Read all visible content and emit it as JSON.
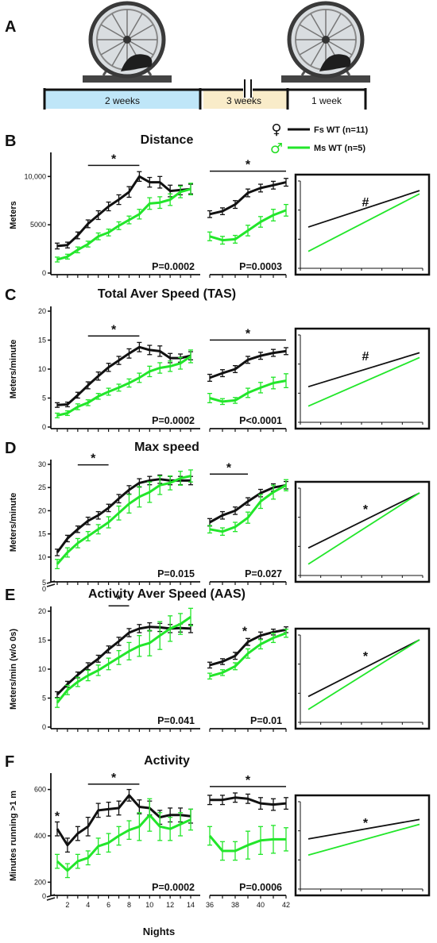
{
  "colors": {
    "fs": "#111111",
    "ms": "#22e62a",
    "timeline_water": "#bfe6f8",
    "timeline_sand": "#f9ecc9"
  },
  "icons": [
    "running-wheel-icon",
    "running-wheel-icon"
  ],
  "panel_a": {
    "label": "A",
    "segments": [
      "2 weeks",
      "3 weeks",
      "1 week"
    ]
  },
  "legend": {
    "fs_symbol": "♀",
    "ms_symbol": "♂",
    "fs_label": "Fs WT (n=11)",
    "ms_label": "Ms WT (n=5)"
  },
  "x_axis": {
    "label": "Nights",
    "left_ticks": [
      "2",
      "4",
      "6",
      "8",
      "10",
      "12",
      "14"
    ],
    "right_ticks": [
      "36",
      "38",
      "40",
      "42"
    ]
  },
  "chart_data": [
    {
      "id": "B",
      "label": "B",
      "type": "line",
      "title": "Distance",
      "ylabel": "Meters",
      "ylim": [
        0,
        12000
      ],
      "yticks": [
        0,
        5000,
        10000
      ],
      "ytick_labels": [
        "0",
        "5000",
        "10,000"
      ],
      "axis_break": false,
      "x_left": [
        1,
        2,
        3,
        4,
        5,
        6,
        7,
        8,
        9,
        10,
        11,
        12,
        13,
        14
      ],
      "x_right": [
        36,
        37,
        38,
        39,
        40,
        41,
        42
      ],
      "series": [
        {
          "name": "Fs WT (n=11)",
          "color_key": "fs",
          "left": [
            2800,
            2900,
            3900,
            5100,
            6000,
            6900,
            7600,
            8400,
            10000,
            9400,
            9400,
            8500,
            8600,
            8700
          ],
          "left_err": [
            300,
            300,
            350,
            400,
            450,
            450,
            500,
            550,
            500,
            500,
            600,
            600,
            500,
            500
          ],
          "right": [
            6100,
            6400,
            7100,
            8300,
            8800,
            9100,
            9400
          ],
          "right_err": [
            350,
            350,
            400,
            400,
            400,
            400,
            400
          ]
        },
        {
          "name": "Ms WT (n=5)",
          "color_key": "ms",
          "left": [
            1400,
            1700,
            2400,
            3000,
            3800,
            4200,
            4900,
            5500,
            6100,
            7200,
            7300,
            7600,
            8400,
            8700
          ],
          "left_err": [
            250,
            250,
            300,
            300,
            350,
            350,
            400,
            400,
            500,
            600,
            600,
            600,
            600,
            600
          ],
          "right": [
            3800,
            3400,
            3500,
            4400,
            5300,
            6000,
            6500
          ],
          "right_err": [
            450,
            400,
            400,
            550,
            550,
            600,
            600
          ]
        }
      ],
      "sig_left": {
        "x1": 4,
        "x2": 9,
        "label": "*"
      },
      "sig_right": {
        "x1": 36,
        "x2": 42,
        "label": "*"
      },
      "p_left": "P=0.0002",
      "p_right": "P=0.0003",
      "inset": {
        "label": "#",
        "fs": [
          0.47,
          0.92
        ],
        "ms": [
          0.17,
          0.88
        ]
      }
    },
    {
      "id": "C",
      "label": "C",
      "type": "line",
      "title": "Total Aver Speed (TAS)",
      "ylabel": "Meters/minute",
      "ylim": [
        0,
        20
      ],
      "yticks": [
        0,
        5,
        10,
        15,
        20
      ],
      "ytick_labels": [
        "0",
        "5",
        "10",
        "15",
        "20"
      ],
      "axis_break": false,
      "x_left": [
        1,
        2,
        3,
        4,
        5,
        6,
        7,
        8,
        9,
        10,
        11,
        12,
        13,
        14
      ],
      "x_right": [
        36,
        37,
        38,
        39,
        40,
        41,
        42
      ],
      "series": [
        {
          "name": "Fs WT (n=11)",
          "color_key": "fs",
          "left": [
            3.8,
            3.9,
            5.5,
            7.2,
            8.8,
            10.3,
            11.5,
            12.7,
            13.8,
            13.3,
            13.1,
            11.9,
            11.9,
            12.3
          ],
          "left_err": [
            0.4,
            0.4,
            0.5,
            0.6,
            0.7,
            0.7,
            0.7,
            0.8,
            0.8,
            0.8,
            0.9,
            0.8,
            0.7,
            0.7
          ],
          "right": [
            8.5,
            9.3,
            10.0,
            11.6,
            12.3,
            12.8,
            13.1
          ],
          "right_err": [
            0.6,
            0.6,
            0.6,
            0.6,
            0.6,
            0.6,
            0.6
          ]
        },
        {
          "name": "Ms WT (n=5)",
          "color_key": "ms",
          "left": [
            2.0,
            2.4,
            3.5,
            4.2,
            5.3,
            6.1,
            6.8,
            7.6,
            8.5,
            9.6,
            10.2,
            10.5,
            11.0,
            12.2
          ],
          "left_err": [
            0.4,
            0.4,
            0.5,
            0.5,
            0.5,
            0.6,
            0.6,
            0.7,
            0.8,
            0.9,
            0.9,
            0.9,
            1.0,
            1.1
          ],
          "right": [
            5.0,
            4.4,
            4.6,
            5.9,
            6.8,
            7.6,
            8.0
          ],
          "right_err": [
            0.8,
            0.5,
            0.5,
            0.8,
            0.9,
            1.0,
            1.2
          ]
        }
      ],
      "sig_left": {
        "x1": 4,
        "x2": 9,
        "label": "*"
      },
      "sig_right": {
        "x1": 36,
        "x2": 42,
        "label": "*"
      },
      "p_left": "P=0.0002",
      "p_right": "P<0.0001",
      "inset": {
        "label": "#",
        "fs": [
          0.4,
          0.82
        ],
        "ms": [
          0.16,
          0.76
        ]
      }
    },
    {
      "id": "D",
      "label": "D",
      "type": "line",
      "title": "Max speed",
      "ylabel": "Meters/minute",
      "ylim": [
        5,
        30
      ],
      "yticks": [
        10,
        15,
        20,
        25,
        30
      ],
      "ytick_labels": [
        "10",
        "15",
        "20",
        "25",
        "30"
      ],
      "axis_break": true,
      "break_labels": [
        "5",
        "0"
      ],
      "x_left": [
        1,
        2,
        3,
        4,
        5,
        6,
        7,
        8,
        9,
        10,
        11,
        12,
        13,
        14
      ],
      "x_right": [
        36,
        37,
        38,
        39,
        40,
        41,
        42
      ],
      "series": [
        {
          "name": "Fs WT (n=11)",
          "color_key": "fs",
          "left": [
            11,
            14,
            16,
            17.8,
            19,
            20.6,
            22.6,
            24.5,
            26,
            26.5,
            26.8,
            26.5,
            26.5,
            26.5
          ],
          "left_err": [
            0.7,
            0.7,
            0.7,
            0.8,
            0.8,
            0.8,
            0.9,
            0.9,
            0.9,
            0.9,
            0.9,
            0.9,
            0.9,
            0.9
          ],
          "right": [
            17.5,
            19,
            20,
            22,
            23.8,
            25,
            25.5
          ],
          "right_err": [
            0.8,
            0.8,
            0.8,
            0.8,
            0.8,
            0.8,
            0.8
          ]
        },
        {
          "name": "Ms WT (n=5)",
          "color_key": "ms",
          "left": [
            8.5,
            11,
            13,
            14.5,
            16,
            17.5,
            19.5,
            21.5,
            23,
            24,
            25.5,
            26,
            27,
            27.5
          ],
          "left_err": [
            1.0,
            1.0,
            1.0,
            1.0,
            1.0,
            1.2,
            1.5,
            2.0,
            2.2,
            2.2,
            2.0,
            1.5,
            1.5,
            1.3
          ],
          "right": [
            16,
            15.5,
            16.5,
            18.5,
            22,
            24,
            25.5
          ],
          "right_err": [
            0.8,
            0.8,
            1.0,
            1.2,
            1.5,
            1.5,
            1.2
          ]
        }
      ],
      "sig_left": {
        "x1": 3,
        "x2": 6,
        "label": "*"
      },
      "sig_right": {
        "x1": 36,
        "x2": 39,
        "label": "*"
      },
      "p_left": "P=0.015",
      "p_right": "P=0.027",
      "inset": {
        "label": "*",
        "fs": [
          0.3,
          0.98
        ],
        "ms": [
          0.1,
          0.98
        ]
      }
    },
    {
      "id": "E",
      "label": "E",
      "type": "line",
      "title": "Activity Aver Speed (AAS)",
      "ylabel": "Meters/min (w/o 0s)",
      "ylim": [
        0,
        20
      ],
      "yticks": [
        0,
        5,
        10,
        15,
        20
      ],
      "ytick_labels": [
        "0",
        "5",
        "10",
        "15",
        "20"
      ],
      "axis_break": false,
      "x_left": [
        1,
        2,
        3,
        4,
        5,
        6,
        7,
        8,
        9,
        10,
        11,
        12,
        13,
        14
      ],
      "x_right": [
        36,
        37,
        38,
        39,
        40,
        41,
        42
      ],
      "series": [
        {
          "name": "Fs WT (n=11)",
          "color_key": "fs",
          "left": [
            5.6,
            7.4,
            9.0,
            10.5,
            11.8,
            13.4,
            14.8,
            16.3,
            17.0,
            17.3,
            17.2,
            17.0,
            17.1,
            17.0
          ],
          "left_err": [
            0.5,
            0.5,
            0.5,
            0.6,
            0.6,
            0.6,
            0.7,
            0.7,
            0.7,
            0.7,
            0.7,
            0.7,
            0.7,
            0.7
          ],
          "right": [
            10.7,
            11.3,
            12.3,
            14.7,
            15.8,
            16.4,
            16.8
          ],
          "right_err": [
            0.5,
            0.5,
            0.6,
            0.6,
            0.6,
            0.5,
            0.5
          ]
        },
        {
          "name": "Ms WT (n=5)",
          "color_key": "ms",
          "left": [
            4.2,
            6.4,
            7.8,
            8.9,
            9.8,
            10.9,
            12.0,
            13.1,
            14.0,
            14.5,
            15.8,
            17.0,
            17.8,
            19.0
          ],
          "left_err": [
            0.8,
            0.8,
            0.8,
            0.9,
            0.9,
            1.0,
            1.2,
            1.5,
            1.8,
            2.2,
            2.4,
            2.2,
            1.8,
            1.5
          ],
          "right": [
            8.8,
            9.4,
            10.5,
            12.7,
            14.3,
            15.4,
            16.2
          ],
          "right_err": [
            0.5,
            0.5,
            0.6,
            0.8,
            0.8,
            0.8,
            0.7
          ]
        }
      ],
      "sig_left": {
        "x1": 6,
        "x2": 8,
        "label": "*"
      },
      "sig_right_star": {
        "x": 39,
        "label": "*"
      },
      "p_left": "P=0.041",
      "p_right": "P=0.01",
      "inset": {
        "label": "*",
        "fs": [
          0.28,
          0.98
        ],
        "ms": [
          0.12,
          0.98
        ]
      }
    },
    {
      "id": "F",
      "label": "F",
      "type": "line",
      "title": "Activity",
      "ylabel": "Minutes running >1 m",
      "ylim": [
        150,
        650
      ],
      "yticks": [
        200,
        400,
        600
      ],
      "ytick_labels": [
        "200",
        "400",
        "600"
      ],
      "axis_break": true,
      "break_labels": [
        "0"
      ],
      "x_left": [
        1,
        2,
        3,
        4,
        5,
        6,
        7,
        8,
        9,
        10,
        11,
        12,
        13,
        14
      ],
      "x_right": [
        36,
        37,
        38,
        39,
        40,
        41,
        42
      ],
      "series": [
        {
          "name": "Fs WT (n=11)",
          "color_key": "fs",
          "left": [
            430,
            360,
            410,
            440,
            510,
            515,
            520,
            575,
            525,
            520,
            480,
            490,
            490,
            485
          ],
          "left_err": [
            30,
            30,
            30,
            40,
            30,
            30,
            30,
            25,
            30,
            30,
            30,
            30,
            30,
            30
          ],
          "right": [
            555,
            555,
            565,
            560,
            540,
            535,
            540
          ],
          "right_err": [
            20,
            20,
            20,
            20,
            25,
            25,
            25
          ]
        },
        {
          "name": "Ms WT (n=5)",
          "color_key": "ms",
          "left": [
            290,
            250,
            290,
            305,
            355,
            370,
            400,
            425,
            440,
            490,
            440,
            430,
            450,
            470
          ],
          "left_err": [
            30,
            30,
            30,
            30,
            35,
            40,
            40,
            40,
            60,
            70,
            60,
            50,
            50,
            45
          ],
          "right": [
            400,
            335,
            335,
            360,
            380,
            385,
            385
          ],
          "right_err": [
            40,
            40,
            40,
            60,
            60,
            60,
            50
          ]
        }
      ],
      "sig_left": {
        "x1": 4,
        "x2": 9,
        "label": "*"
      },
      "sig_right": {
        "x1": 36,
        "x2": 42,
        "label": "*"
      },
      "extra_star": {
        "x": 1,
        "label": "*"
      },
      "p_left": "P=0.0002",
      "p_right": "P=0.0006",
      "inset": {
        "label": "*",
        "fs": [
          0.58,
          0.82
        ],
        "ms": [
          0.38,
          0.76
        ]
      }
    }
  ]
}
